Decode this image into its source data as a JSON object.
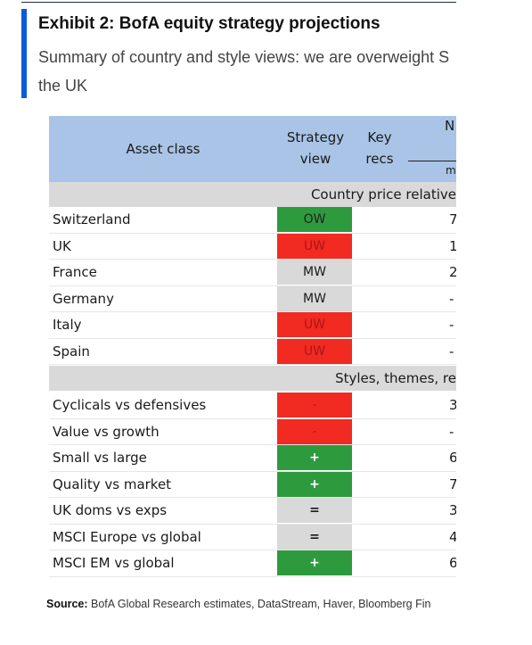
{
  "exhibit": {
    "title": "Exhibit 2: BofA equity strategy projections",
    "subtitle_line1": "Summary of country and style views: we are overweight S",
    "subtitle_line2": "the UK"
  },
  "table": {
    "headers": {
      "asset_class": "Asset class",
      "strategy_line1": "Strategy",
      "strategy_line2": "view",
      "key_line1": "Key",
      "key_line2": "recs",
      "partial_top": "N",
      "partial_bottom": "m"
    },
    "sections": [
      {
        "label": "Country price relative",
        "rows": [
          {
            "label": "Switzerland",
            "view": "OW",
            "value": "7"
          },
          {
            "label": "UK",
            "view": "UW",
            "value": "1"
          },
          {
            "label": "France",
            "view": "MW",
            "value": "2"
          },
          {
            "label": "Germany",
            "view": "MW",
            "value": "-"
          },
          {
            "label": "Italy",
            "view": "UW",
            "value": "-"
          },
          {
            "label": "Spain",
            "view": "UW",
            "value": "-"
          }
        ]
      },
      {
        "label": "Styles, themes, re",
        "rows": [
          {
            "label": "Cyclicals vs defensives",
            "view": "-",
            "value": "3"
          },
          {
            "label": "Value vs growth",
            "view": "-",
            "value": "-"
          },
          {
            "label": "Small vs large",
            "view": "+",
            "value": "6"
          },
          {
            "label": "Quality vs market",
            "view": "+",
            "value": "7"
          },
          {
            "label": "UK doms vs exps",
            "view": "=",
            "value": "3"
          },
          {
            "label": "MSCI Europe vs global",
            "view": "=",
            "value": "4"
          },
          {
            "label": "MSCI EM vs global",
            "view": "+",
            "value": "6"
          }
        ]
      }
    ]
  },
  "source": {
    "label": "Source:",
    "text": " BofA Global Research estimates, DataStream, Haver, Bloomberg Fin"
  },
  "colors": {
    "accent_bar": "#0a5bd8",
    "header_bg": "#a9c4e6",
    "overweight": "#2e9a3e",
    "underweight": "#f12a22",
    "neutral": "#d9d9d9"
  }
}
